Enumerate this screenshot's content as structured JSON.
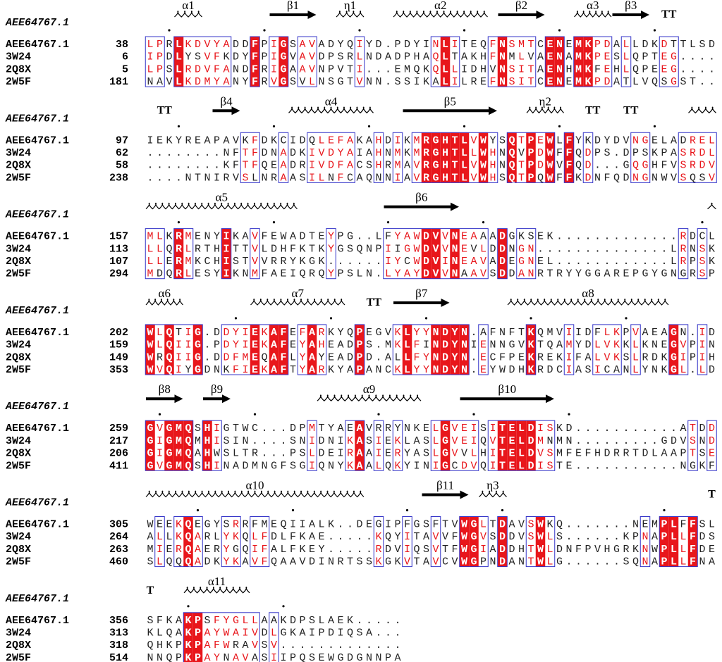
{
  "blocks": [
    {
      "reference": "AEE64767.1",
      "structure": [
        {
          "type": "helix",
          "label": "α1",
          "start": 3,
          "end": 5
        },
        {
          "type": "strand",
          "label": "β1",
          "start": 13,
          "end": 17
        },
        {
          "type": "helix",
          "label": "η1",
          "start": 20,
          "end": 22
        },
        {
          "type": "helix",
          "label": "α2",
          "start": 26,
          "end": 35
        },
        {
          "type": "strand",
          "label": "β2",
          "start": 37,
          "end": 41
        },
        {
          "type": "helix",
          "label": "α3",
          "start": 45,
          "end": 48
        },
        {
          "type": "strand",
          "label": "β3",
          "start": 49,
          "end": 52
        },
        {
          "type": "turn",
          "label": "TT",
          "start": 54,
          "end": 55
        }
      ],
      "rows": [
        {
          "name": "AEE64767.1",
          "start": 38,
          "sequence": "LPRLKDVYADDFPIGSAVADYQIYD.PDYINLITEQFNSMTCENEMKPDALLDKDTTLSD"
        },
        {
          "name": "3W24",
          "start": 6,
          "sequence": "IPDLYSVFKDYFPIGVAVDPSRLNDADPHAQLTAKHFNMLVAENAMKPESLQPTEG...."
        },
        {
          "name": "2Q8X",
          "start": 5,
          "sequence": "LPSLRDVFANDFRIGAAVNPVTI...EMQKQLLIDHVNSITAENHMKFEHLQPEEG...."
        },
        {
          "name": "2W5F",
          "start": 181,
          "sequence": "NAVLKDMYANYFRVGSVLNSGTVNN.SSIKALILREFNSITCENEMKPDATLVQSGST.."
        }
      ]
    },
    {
      "reference": "AEE64767.1",
      "structure": [
        {
          "type": "turn",
          "label": "TT",
          "start": 1,
          "end": 2
        },
        {
          "type": "strand",
          "label": "β4",
          "start": 7,
          "end": 9
        },
        {
          "type": "helix",
          "label": "α4",
          "start": 15,
          "end": 23
        },
        {
          "type": "strand",
          "label": "β5",
          "start": 27,
          "end": 36
        },
        {
          "type": "helix",
          "label": "η2",
          "start": 40,
          "end": 43
        },
        {
          "type": "turn",
          "label": "TT",
          "start": 46,
          "end": 47
        },
        {
          "type": "turn",
          "label": "TT",
          "start": 50,
          "end": 51
        },
        {
          "type": "helix",
          "start": 57,
          "end": 59
        }
      ],
      "rows": [
        {
          "name": "AEE64767.1",
          "start": 97,
          "sequence": "IEKYREAPAVKFDKCIDQLEFAKAHDIKMRGHTLVWYSQTPEWLFYKDYDVNGELADREL"
        },
        {
          "name": "3W24",
          "start": 62,
          "sequence": "........NFTFDNADKIVDYAIAHNMKMRGHTLLWHNQVPDWFFQDPS.DPSKPASRDL"
        },
        {
          "name": "2Q8X",
          "start": 58,
          "sequence": "........KFTFQEADRIVDFACSHRMAVRGHTLVWHNQTPDWVFQD...GQGHFVSRDV"
        },
        {
          "name": "2W5F",
          "start": 238,
          "sequence": "....NTNIRVSLNRAASILNFCAQNNIAVRGHTLVWHSQTPQWFFKDNFQDNGNWVSQSV"
        }
      ]
    },
    {
      "reference": "AEE64767.1",
      "structure": [
        {
          "type": "helix",
          "label": "α5",
          "start": 0,
          "end": 15
        },
        {
          "type": "strand",
          "label": "β6",
          "start": 25,
          "end": 32
        },
        {
          "type": "helix",
          "start": 59,
          "end": 59
        }
      ],
      "rows": [
        {
          "name": "AEE64767.1",
          "start": 157,
          "sequence": "MLKRMENYIKAVFEWADTEYPG..LFYAWDVVNEAAADGKSEK.............RDCL"
        },
        {
          "name": "3W24",
          "start": 113,
          "sequence": "LLQRLRTHITTVLDHFKTKYGSQNPIIGWDVVNEVLDDNGN..............LRNSK"
        },
        {
          "name": "2Q8X",
          "start": 107,
          "sequence": "LLERMKCHISTVVRRYKGK......IYCWDVINEAVADEGNEL............LRPSK"
        },
        {
          "name": "2W5F",
          "start": 294,
          "sequence": "MDQRLESYIKNMFAEIQRQYPSLN.LYAYDVVNAAVSDDANRTRYYGGAREPGYGNGRSP"
        }
      ]
    },
    {
      "reference": "AEE64767.1",
      "structure": [
        {
          "type": "helix",
          "label": "α6",
          "start": 0,
          "end": 3
        },
        {
          "type": "helix",
          "label": "α7",
          "start": 11,
          "end": 20
        },
        {
          "type": "turn",
          "label": "TT",
          "start": 23,
          "end": 24
        },
        {
          "type": "strand",
          "label": "β7",
          "start": 26,
          "end": 31
        },
        {
          "type": "helix",
          "label": "α8",
          "start": 38,
          "end": 54
        }
      ],
      "rows": [
        {
          "name": "AEE64767.1",
          "start": 202,
          "sequence": "WLQTIG.DDYIEKAFEFARKYQPEGVKLYYNDYN.AFNFTKQMVIIDFLKPVAEAGN.ID"
        },
        {
          "name": "3W24",
          "start": 159,
          "sequence": "WLQIIG.PDYIEKAFEYAHEADPS.MKLFINDYNIENNGVKTQAMYDLVKKLKNEGVPIN"
        },
        {
          "name": "2Q8X",
          "start": 149,
          "sequence": "WRQIIG.DDFMEQAFLYAYEADPD.ALLFYNDYN.ECFPEKREKIFALVKSLRDKGIPIH"
        },
        {
          "name": "2W5F",
          "start": 353,
          "sequence": "WVQIYGDNKFIEKAFTYARKYAPANCKLYYNDYN.EYWDHKRDCIASICANLYNKGL.LD"
        }
      ]
    },
    {
      "reference": "AEE64767.1",
      "structure": [
        {
          "type": "strand",
          "label": "β8",
          "start": 0,
          "end": 3
        },
        {
          "type": "strand",
          "label": "β9",
          "start": 6,
          "end": 8
        },
        {
          "type": "helix",
          "label": "α9",
          "start": 18,
          "end": 28
        },
        {
          "type": "strand",
          "label": "β10",
          "start": 33,
          "end": 42
        }
      ],
      "rows": [
        {
          "name": "AEE64767.1",
          "start": 259,
          "sequence": "GVGMQSHIGTWC...DPMTYAEAVRRYNKELGVEISITELDISKD...........ATDD"
        },
        {
          "name": "3W24",
          "start": 217,
          "sequence": "GIGMQMHISIN....SNIDNIKASIEKLASLGVEIQVTELDMNMN.........GDVSND"
        },
        {
          "name": "2Q8X",
          "start": 206,
          "sequence": "GIGMQAHWSLTR...PSLDEIRAAIERYASLGVVLHITELDVSMFEFHDRRTDLAAPTSE"
        },
        {
          "name": "2W5F",
          "start": 411,
          "sequence": "GVGMQSHINADMNGFSGIQNYKAALQKYINIGCDVQITELDISTE...........NGKF"
        }
      ]
    },
    {
      "reference": "AEE64767.1",
      "structure": [
        {
          "type": "helix",
          "label": "α10",
          "start": 0,
          "end": 22
        },
        {
          "type": "strand",
          "label": "β11",
          "start": 29,
          "end": 33
        },
        {
          "type": "helix",
          "label": "η3",
          "start": 35,
          "end": 37
        },
        {
          "type": "turn",
          "label": "T",
          "start": 59,
          "end": 59
        }
      ],
      "rows": [
        {
          "name": "AEE64767.1",
          "start": 305,
          "sequence": "WEEKQEGYSRRFMEQIIALK..DEGIPFGSFTVWGLTDAVSWKQ.......NEMPLFFSL"
        },
        {
          "name": "3W24",
          "start": 264,
          "sequence": "ALLKQARLYKQLFDLFKAE.....KQYITAVVFWGVSDDVSWLS......KPNAPLLFDS"
        },
        {
          "name": "2Q8X",
          "start": 263,
          "sequence": "MIERQAERYGQIFALFKEY.....RDVIQSVTFWGIADDHTWLDNFPVHGRKNWPLLFDE"
        },
        {
          "name": "2W5F",
          "start": 460,
          "sequence": "SLQQQADKYKAVFQAAVDINRTSSKGKVTAVCVWGPNDANTWLG......SQNAPLLFNA"
        }
      ]
    },
    {
      "reference": "AEE64767.1",
      "structure": [
        {
          "type": "turn",
          "label": "T",
          "start": 0,
          "end": 0
        },
        {
          "type": "helix",
          "label": "α11",
          "start": 4,
          "end": 10
        }
      ],
      "rows": [
        {
          "name": "AEE64767.1",
          "start": 356,
          "sequence": "SFKAKPSFYGLLAAKDPSLAEK....."
        },
        {
          "name": "3W24",
          "start": 313,
          "sequence": "KLQAKPAYWAIVDLGKAIPDIQSA..."
        },
        {
          "name": "2Q8X",
          "start": 318,
          "sequence": "QHKPKPAFWRAVSV............."
        },
        {
          "name": "2W5F",
          "start": 514,
          "sequence": "NNQPKPAYNAVASIIPQSEWGDGNNPA"
        }
      ]
    }
  ]
}
